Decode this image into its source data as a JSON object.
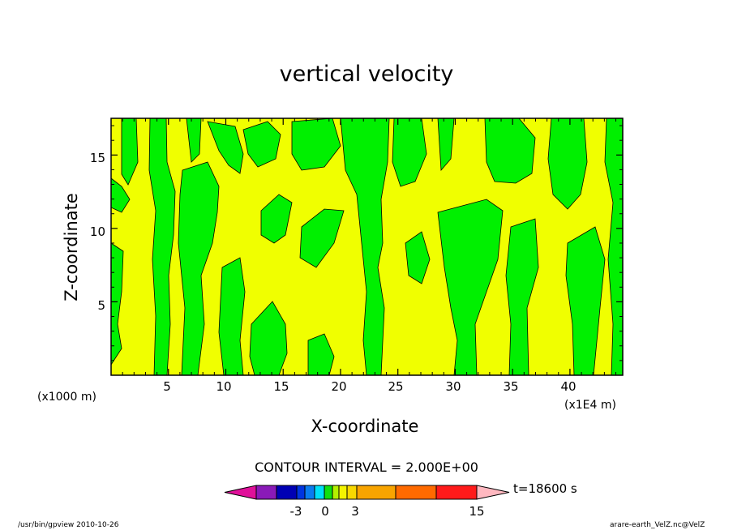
{
  "chart_data": {
    "type": "heatmap",
    "title": "vertical velocity",
    "xlabel": "X-coordinate",
    "ylabel": "Z-coordinate",
    "x_unit_left": "(x1000 m)",
    "x_unit_right": "(x1E4 m)",
    "x_ticks": [
      "5",
      "10",
      "15",
      "20",
      "25",
      "30",
      "35",
      "40"
    ],
    "y_ticks": [
      "5",
      "10",
      "15"
    ],
    "xlim": [
      0,
      44.6
    ],
    "ylim": [
      0,
      17.5
    ],
    "contour_interval_text": "CONTOUR INTERVAL = 2.000E+00",
    "time_text": "t=18600 s",
    "colorbar": {
      "labels": [
        "-3",
        "0",
        "3",
        "15"
      ],
      "colors": [
        "#e0109a",
        "#8a1ab8",
        "#0000b4",
        "#0034e0",
        "#0a7cf0",
        "#00e0f8",
        "#10e010",
        "#b4f000",
        "#f4f400",
        "#f8d800",
        "#f8a400",
        "#ff6a00",
        "#ff1a1a",
        "#ff7a7a",
        "#ffb8c0"
      ]
    },
    "region_colors": {
      "positive": "#f0ff00",
      "negative": "#00f000"
    },
    "grid": false,
    "legend": "colorbar at bottom"
  },
  "footer": {
    "left": "/usr/bin/gpview   2010-10-26",
    "right": "arare-earth_VelZ.nc@VelZ"
  }
}
